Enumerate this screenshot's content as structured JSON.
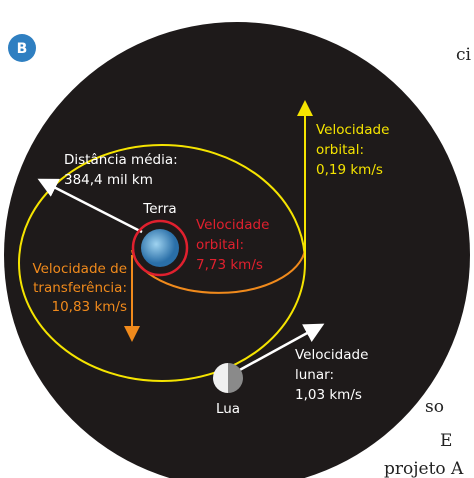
{
  "badge": "B",
  "cutoff_text": [
    "ci",
    "so",
    "E",
    "projeto A"
  ],
  "earth": {
    "label": "Terra"
  },
  "moon": {
    "label": "Lua"
  },
  "distance": {
    "lines": [
      "Distância média:",
      "384,4 mil km"
    ]
  },
  "earth_orbital_velocity": {
    "lines": [
      "Velocidade",
      "orbital:",
      "7,73 km/s"
    ]
  },
  "transfer_velocity": {
    "lines": [
      "Velocidade de",
      "transferência:",
      "10,83 km/s"
    ]
  },
  "moon_orbit_velocity": {
    "lines": [
      "Velocidade",
      "orbital:",
      "0,19 km/s"
    ]
  },
  "lunar_velocity": {
    "lines": [
      "Velocidade",
      "lunar:",
      "1,03 km/s"
    ]
  }
}
